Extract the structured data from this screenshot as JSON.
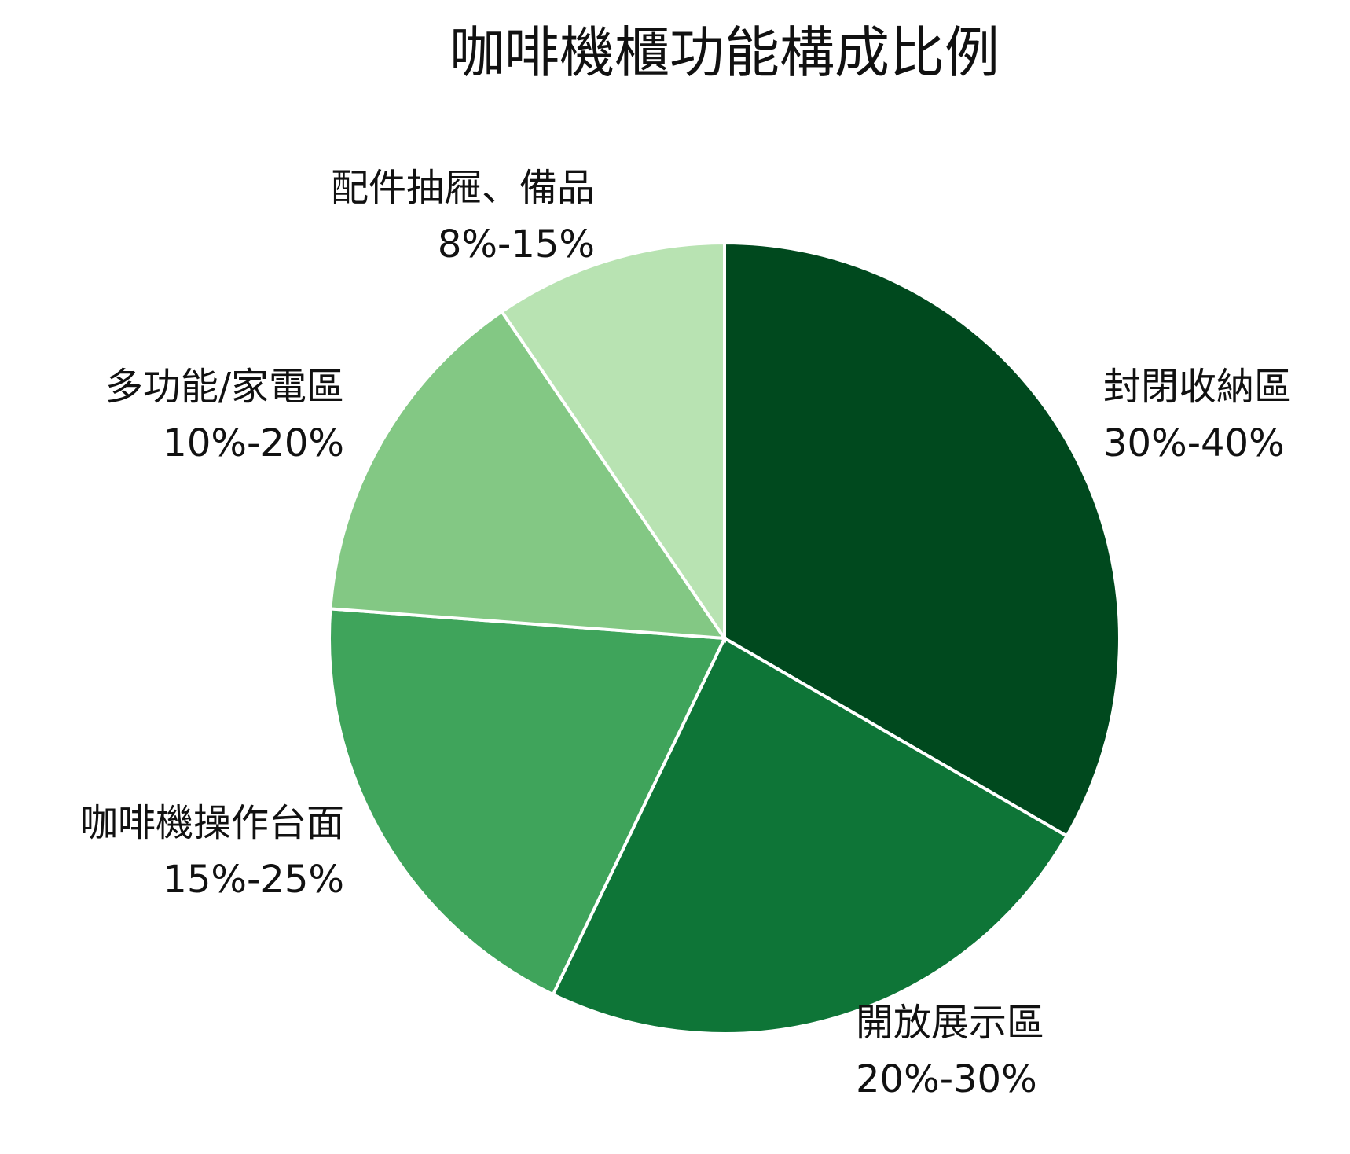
{
  "chart_data": {
    "type": "pie",
    "title": "咖啡機櫃功能構成比例",
    "categories": [
      "封閉收納區",
      "開放展示區",
      "咖啡機操作台面",
      "多功能/家電區",
      "配件抽屜、備品"
    ],
    "values": [
      35,
      25,
      20,
      15,
      10
    ],
    "value_labels": [
      "30%-40%",
      "20%-30%",
      "15%-25%",
      "10%-20%",
      "8%-15%"
    ],
    "colors": [
      "#00491e",
      "#0e7537",
      "#3fa45b",
      "#83c884",
      "#b8e3b2"
    ]
  }
}
